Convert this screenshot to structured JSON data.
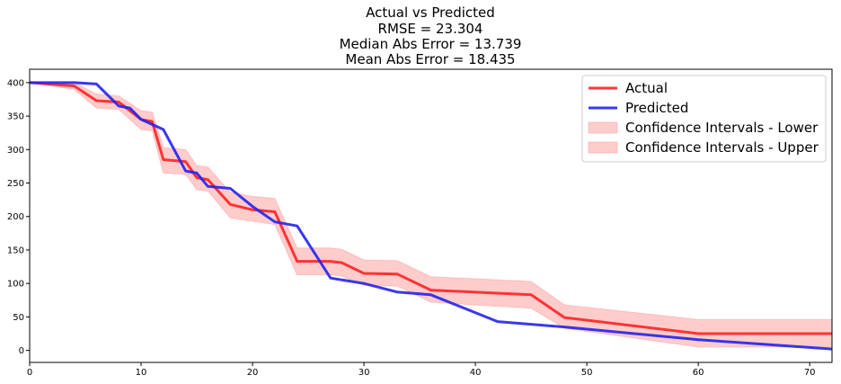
{
  "chart_data": {
    "type": "line",
    "title_lines": [
      "Actual vs Predicted",
      "RMSE = 23.304",
      "Median Abs Error = 13.739",
      "Mean Abs Error = 18.435"
    ],
    "xlabel": "",
    "ylabel": "",
    "xlim": [
      0,
      72
    ],
    "ylim": [
      -18,
      420
    ],
    "x_ticks": [
      0,
      10,
      20,
      30,
      40,
      50,
      60,
      70
    ],
    "y_ticks": [
      0,
      50,
      100,
      150,
      200,
      250,
      300,
      350,
      400
    ],
    "grid": false,
    "legend_position": "top-right",
    "series": [
      {
        "name": "Actual",
        "color": "#ff2222",
        "x": [
          0,
          4,
          6,
          8,
          10,
          11,
          12,
          14,
          15,
          16,
          18,
          20,
          22,
          24,
          27,
          28,
          30,
          33,
          36,
          45,
          48,
          60,
          72
        ],
        "y": [
          400,
          395,
          373,
          371,
          345,
          342,
          285,
          282,
          258,
          255,
          218,
          210,
          207,
          133,
          133,
          131,
          115,
          114,
          90,
          83,
          49,
          25,
          25
        ]
      },
      {
        "name": "Predicted",
        "color": "#2222ee",
        "x": [
          0,
          4,
          6,
          8,
          9,
          10,
          12,
          14,
          15,
          16,
          18,
          20,
          22,
          24,
          27,
          30,
          33,
          36,
          42,
          48,
          60,
          72
        ],
        "y": [
          400,
          400,
          398,
          365,
          362,
          345,
          330,
          268,
          265,
          245,
          242,
          215,
          192,
          186,
          108,
          100,
          87,
          83,
          43,
          35,
          16,
          2
        ]
      }
    ],
    "bands": [
      {
        "name": "Confidence Intervals - Lower",
        "color": "#ff9999",
        "x": [
          0,
          4,
          6,
          8,
          10,
          11,
          12,
          14,
          15,
          16,
          18,
          20,
          22,
          24,
          27,
          28,
          30,
          33,
          36,
          45,
          48,
          60,
          72
        ],
        "y": [
          400,
          390,
          362,
          360,
          330,
          328,
          265,
          263,
          240,
          238,
          198,
          193,
          188,
          113,
          113,
          111,
          97,
          96,
          72,
          63,
          33,
          5,
          5
        ]
      },
      {
        "name": "Confidence Intervals - Upper",
        "color": "#ff9999",
        "x": [
          0,
          4,
          6,
          8,
          10,
          11,
          12,
          14,
          15,
          16,
          18,
          20,
          22,
          24,
          27,
          28,
          30,
          33,
          36,
          45,
          48,
          60,
          72
        ],
        "y": [
          400,
          400,
          383,
          380,
          358,
          356,
          303,
          300,
          276,
          274,
          236,
          230,
          227,
          153,
          153,
          151,
          135,
          134,
          110,
          103,
          68,
          46,
          46
        ]
      }
    ]
  }
}
